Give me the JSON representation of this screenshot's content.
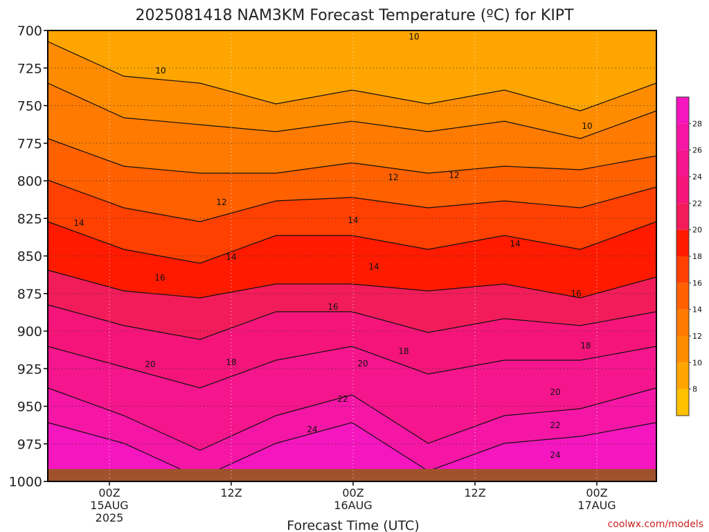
{
  "chart_data": {
    "type": "heatmap",
    "title": "2025081418 NAM3KM Forecast Temperature (ºC) for KIPT",
    "xlabel": "Forecast Time (UTC)",
    "ylabel": "",
    "credit": "coolwx.com/models",
    "y_ticks": [
      "700",
      "725",
      "750",
      "775",
      "800",
      "825",
      "850",
      "875",
      "900",
      "925",
      "950",
      "975",
      "1000"
    ],
    "ylim": [
      700,
      1000
    ],
    "x_ticks": [
      {
        "time": "00Z",
        "date": "15AUG",
        "year": "2025"
      },
      {
        "time": "12Z",
        "date": "",
        "year": ""
      },
      {
        "time": "00Z",
        "date": "16AUG",
        "year": ""
      },
      {
        "time": "12Z",
        "date": "",
        "year": ""
      },
      {
        "time": "00Z",
        "date": "17AUG",
        "year": ""
      }
    ],
    "colorbar": {
      "levels": [
        "8",
        "10",
        "12",
        "14",
        "16",
        "18",
        "20",
        "22",
        "24",
        "26",
        "28"
      ],
      "colors": [
        "#ffc000",
        "#ffa500",
        "#ff8c00",
        "#ff7a00",
        "#ff6000",
        "#ff4000",
        "#ff1a00",
        "#f21c5a",
        "#f5157a",
        "#f5158c",
        "#f516a6",
        "#f516c0"
      ]
    },
    "grid": "dotted",
    "ground_color": "#a0522d",
    "contour_labels": [
      "10",
      "10",
      "10",
      "12",
      "12",
      "12",
      "14",
      "14",
      "14",
      "14",
      "14",
      "16",
      "16",
      "16",
      "18",
      "18",
      "18",
      "20",
      "20",
      "20",
      "22",
      "22",
      "24",
      "24"
    ]
  }
}
